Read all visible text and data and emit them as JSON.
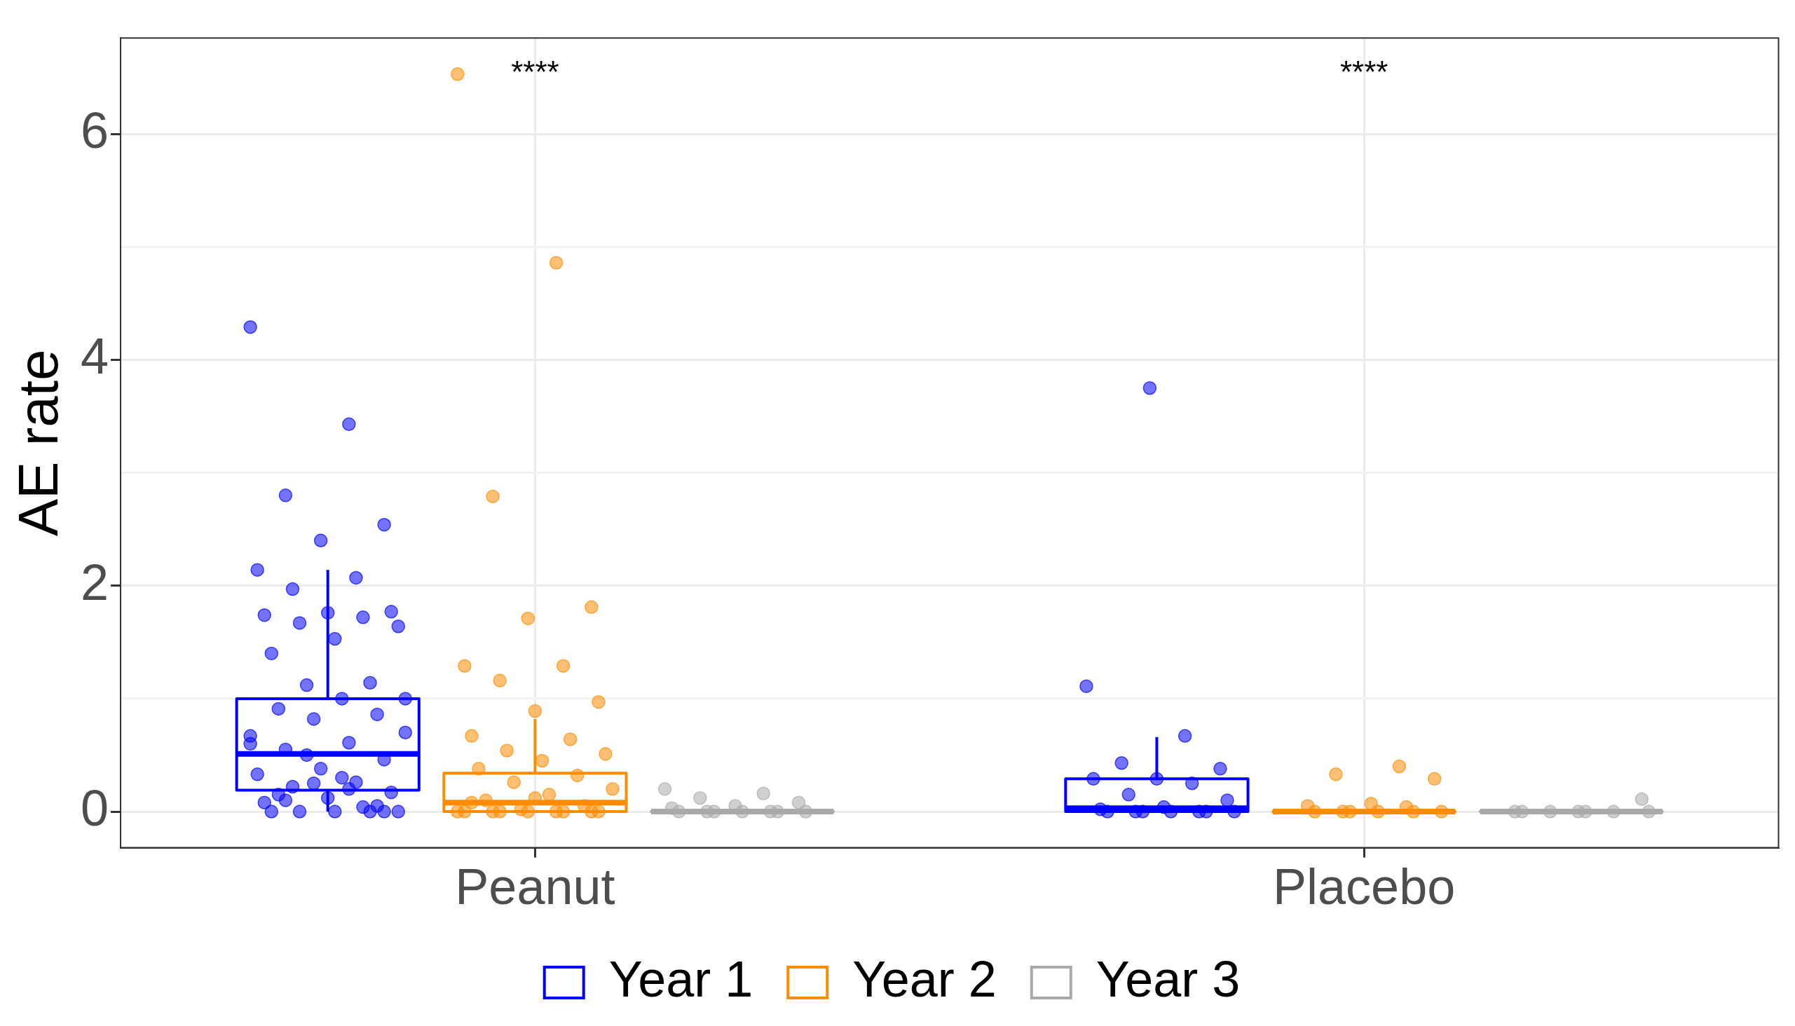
{
  "chart_data": {
    "type": "box",
    "ylabel": "AE rate",
    "categories": [
      "Peanut",
      "Placebo"
    ],
    "ylim": [
      -0.32,
      6.85
    ],
    "yticks": [
      0,
      {
        "value": 1,
        "label": null
      },
      2,
      {
        "value": 3,
        "label": null
      },
      4,
      {
        "value": 5,
        "label": null
      },
      6
    ],
    "grid": true,
    "legend": "bottom",
    "marker": "circle",
    "annotations": [
      "****",
      "****"
    ],
    "series": [
      {
        "name": "Year 1",
        "color": "#0000ff",
        "boxes": [
          {
            "low": 0,
            "q1": 0.19,
            "median": 0.51,
            "q3": 1.0,
            "high": 2.14
          },
          {
            "low": 0,
            "q1": 0,
            "median": 0.03,
            "q3": 0.29,
            "high": 0.66
          }
        ]
      },
      {
        "name": "Year 2",
        "color": "#ff8c00",
        "boxes": [
          {
            "low": 0,
            "q1": 0,
            "median": 0.08,
            "q3": 0.34,
            "high": 0.82
          },
          {
            "low": 0,
            "q1": 0,
            "median": 0,
            "q3": 0,
            "high": 0
          }
        ]
      },
      {
        "name": "Year 3",
        "color": "#a9a9a9",
        "boxes": [
          {
            "low": 0,
            "q1": 0,
            "median": 0,
            "q3": 0,
            "high": 0
          },
          {
            "low": 0,
            "q1": 0,
            "median": 0,
            "q3": 0,
            "high": 0
          }
        ]
      },
      {
        "type": "scatter",
        "color": "#0000ff",
        "x": [
          "Peanut",
          "Peanut",
          "Peanut",
          "Peanut",
          "Peanut",
          "Peanut",
          "Peanut",
          "Peanut",
          "Peanut",
          "Peanut",
          "Peanut",
          "Peanut",
          "Peanut",
          "Peanut",
          "Peanut",
          "Peanut",
          "Peanut",
          "Peanut",
          "Peanut",
          "Peanut",
          "Peanut",
          "Peanut",
          "Peanut",
          "Peanut",
          "Peanut",
          "Peanut",
          "Peanut",
          "Peanut",
          "Peanut",
          "Peanut",
          "Peanut",
          "Peanut",
          "Peanut",
          "Peanut",
          "Peanut",
          "Peanut",
          "Peanut",
          "Peanut",
          "Peanut",
          "Peanut",
          "Peanut",
          "Peanut",
          "Peanut",
          "Peanut",
          "Peanut",
          "Peanut",
          "Peanut",
          "Peanut",
          "Peanut",
          "Peanut",
          "Placebo",
          "Placebo",
          "Placebo",
          "Placebo",
          "Placebo",
          "Placebo",
          "Placebo",
          "Placebo",
          "Placebo",
          "Placebo",
          "Placebo",
          "Placebo",
          "Placebo",
          "Placebo",
          "Placebo",
          "Placebo",
          "Placebo",
          "Placebo",
          "Placebo"
        ],
        "values": [
          4.29,
          3.43,
          2.8,
          2.54,
          2.4,
          2.14,
          2.07,
          1.97,
          1.77,
          1.76,
          1.74,
          1.72,
          1.67,
          1.64,
          1.53,
          1.4,
          1.14,
          1.12,
          1.0,
          1.0,
          0.91,
          0.86,
          0.82,
          0.67,
          0.61,
          0.55,
          0.46,
          0.38,
          0.33,
          0.26,
          0.22,
          0.17,
          0.12,
          0.08,
          0.04,
          0,
          0,
          0,
          0,
          0,
          0.5,
          0.7,
          0.3,
          0.15,
          0.05,
          0.25,
          0.6,
          0.2,
          0.1,
          0,
          3.75,
          1.11,
          0.67,
          0.43,
          0.38,
          0.29,
          0.29,
          0.25,
          0.15,
          0.1,
          0.04,
          0.02,
          0,
          0,
          0,
          0,
          0,
          0,
          0
        ]
      },
      {
        "type": "scatter",
        "color": "#ff8c00",
        "x": [
          "Peanut",
          "Peanut",
          "Peanut",
          "Peanut",
          "Peanut",
          "Peanut",
          "Peanut",
          "Peanut",
          "Peanut",
          "Peanut",
          "Peanut",
          "Peanut",
          "Peanut",
          "Peanut",
          "Peanut",
          "Peanut",
          "Peanut",
          "Peanut",
          "Peanut",
          "Peanut",
          "Peanut",
          "Peanut",
          "Peanut",
          "Peanut",
          "Peanut",
          "Peanut",
          "Peanut",
          "Peanut",
          "Peanut",
          "Peanut",
          "Peanut",
          "Peanut",
          "Peanut",
          "Peanut",
          "Placebo",
          "Placebo",
          "Placebo",
          "Placebo",
          "Placebo",
          "Placebo",
          "Placebo",
          "Placebo",
          "Placebo",
          "Placebo",
          "Placebo",
          "Placebo"
        ],
        "values": [
          6.53,
          4.86,
          2.79,
          1.81,
          1.71,
          1.29,
          1.29,
          1.16,
          0.97,
          0.89,
          0.67,
          0.64,
          0.54,
          0.51,
          0.45,
          0.38,
          0.32,
          0.26,
          0.2,
          0.15,
          0.1,
          0.05,
          0.02,
          0,
          0,
          0,
          0,
          0,
          0,
          0,
          0,
          0,
          0.12,
          0.08,
          0.4,
          0.33,
          0.29,
          0.07,
          0.05,
          0.04,
          0,
          0,
          0,
          0,
          0,
          0
        ]
      },
      {
        "type": "scatter",
        "color": "#a9a9a9",
        "x": [
          "Peanut",
          "Peanut",
          "Peanut",
          "Peanut",
          "Peanut",
          "Peanut",
          "Peanut",
          "Peanut",
          "Peanut",
          "Peanut",
          "Peanut",
          "Peanut",
          "Peanut",
          "Placebo",
          "Placebo",
          "Placebo",
          "Placebo",
          "Placebo",
          "Placebo",
          "Placebo",
          "Placebo"
        ],
        "values": [
          0.2,
          0.16,
          0.12,
          0.08,
          0.05,
          0.03,
          0,
          0,
          0,
          0,
          0,
          0,
          0,
          0.11,
          0,
          0,
          0,
          0,
          0,
          0,
          0
        ]
      }
    ]
  }
}
